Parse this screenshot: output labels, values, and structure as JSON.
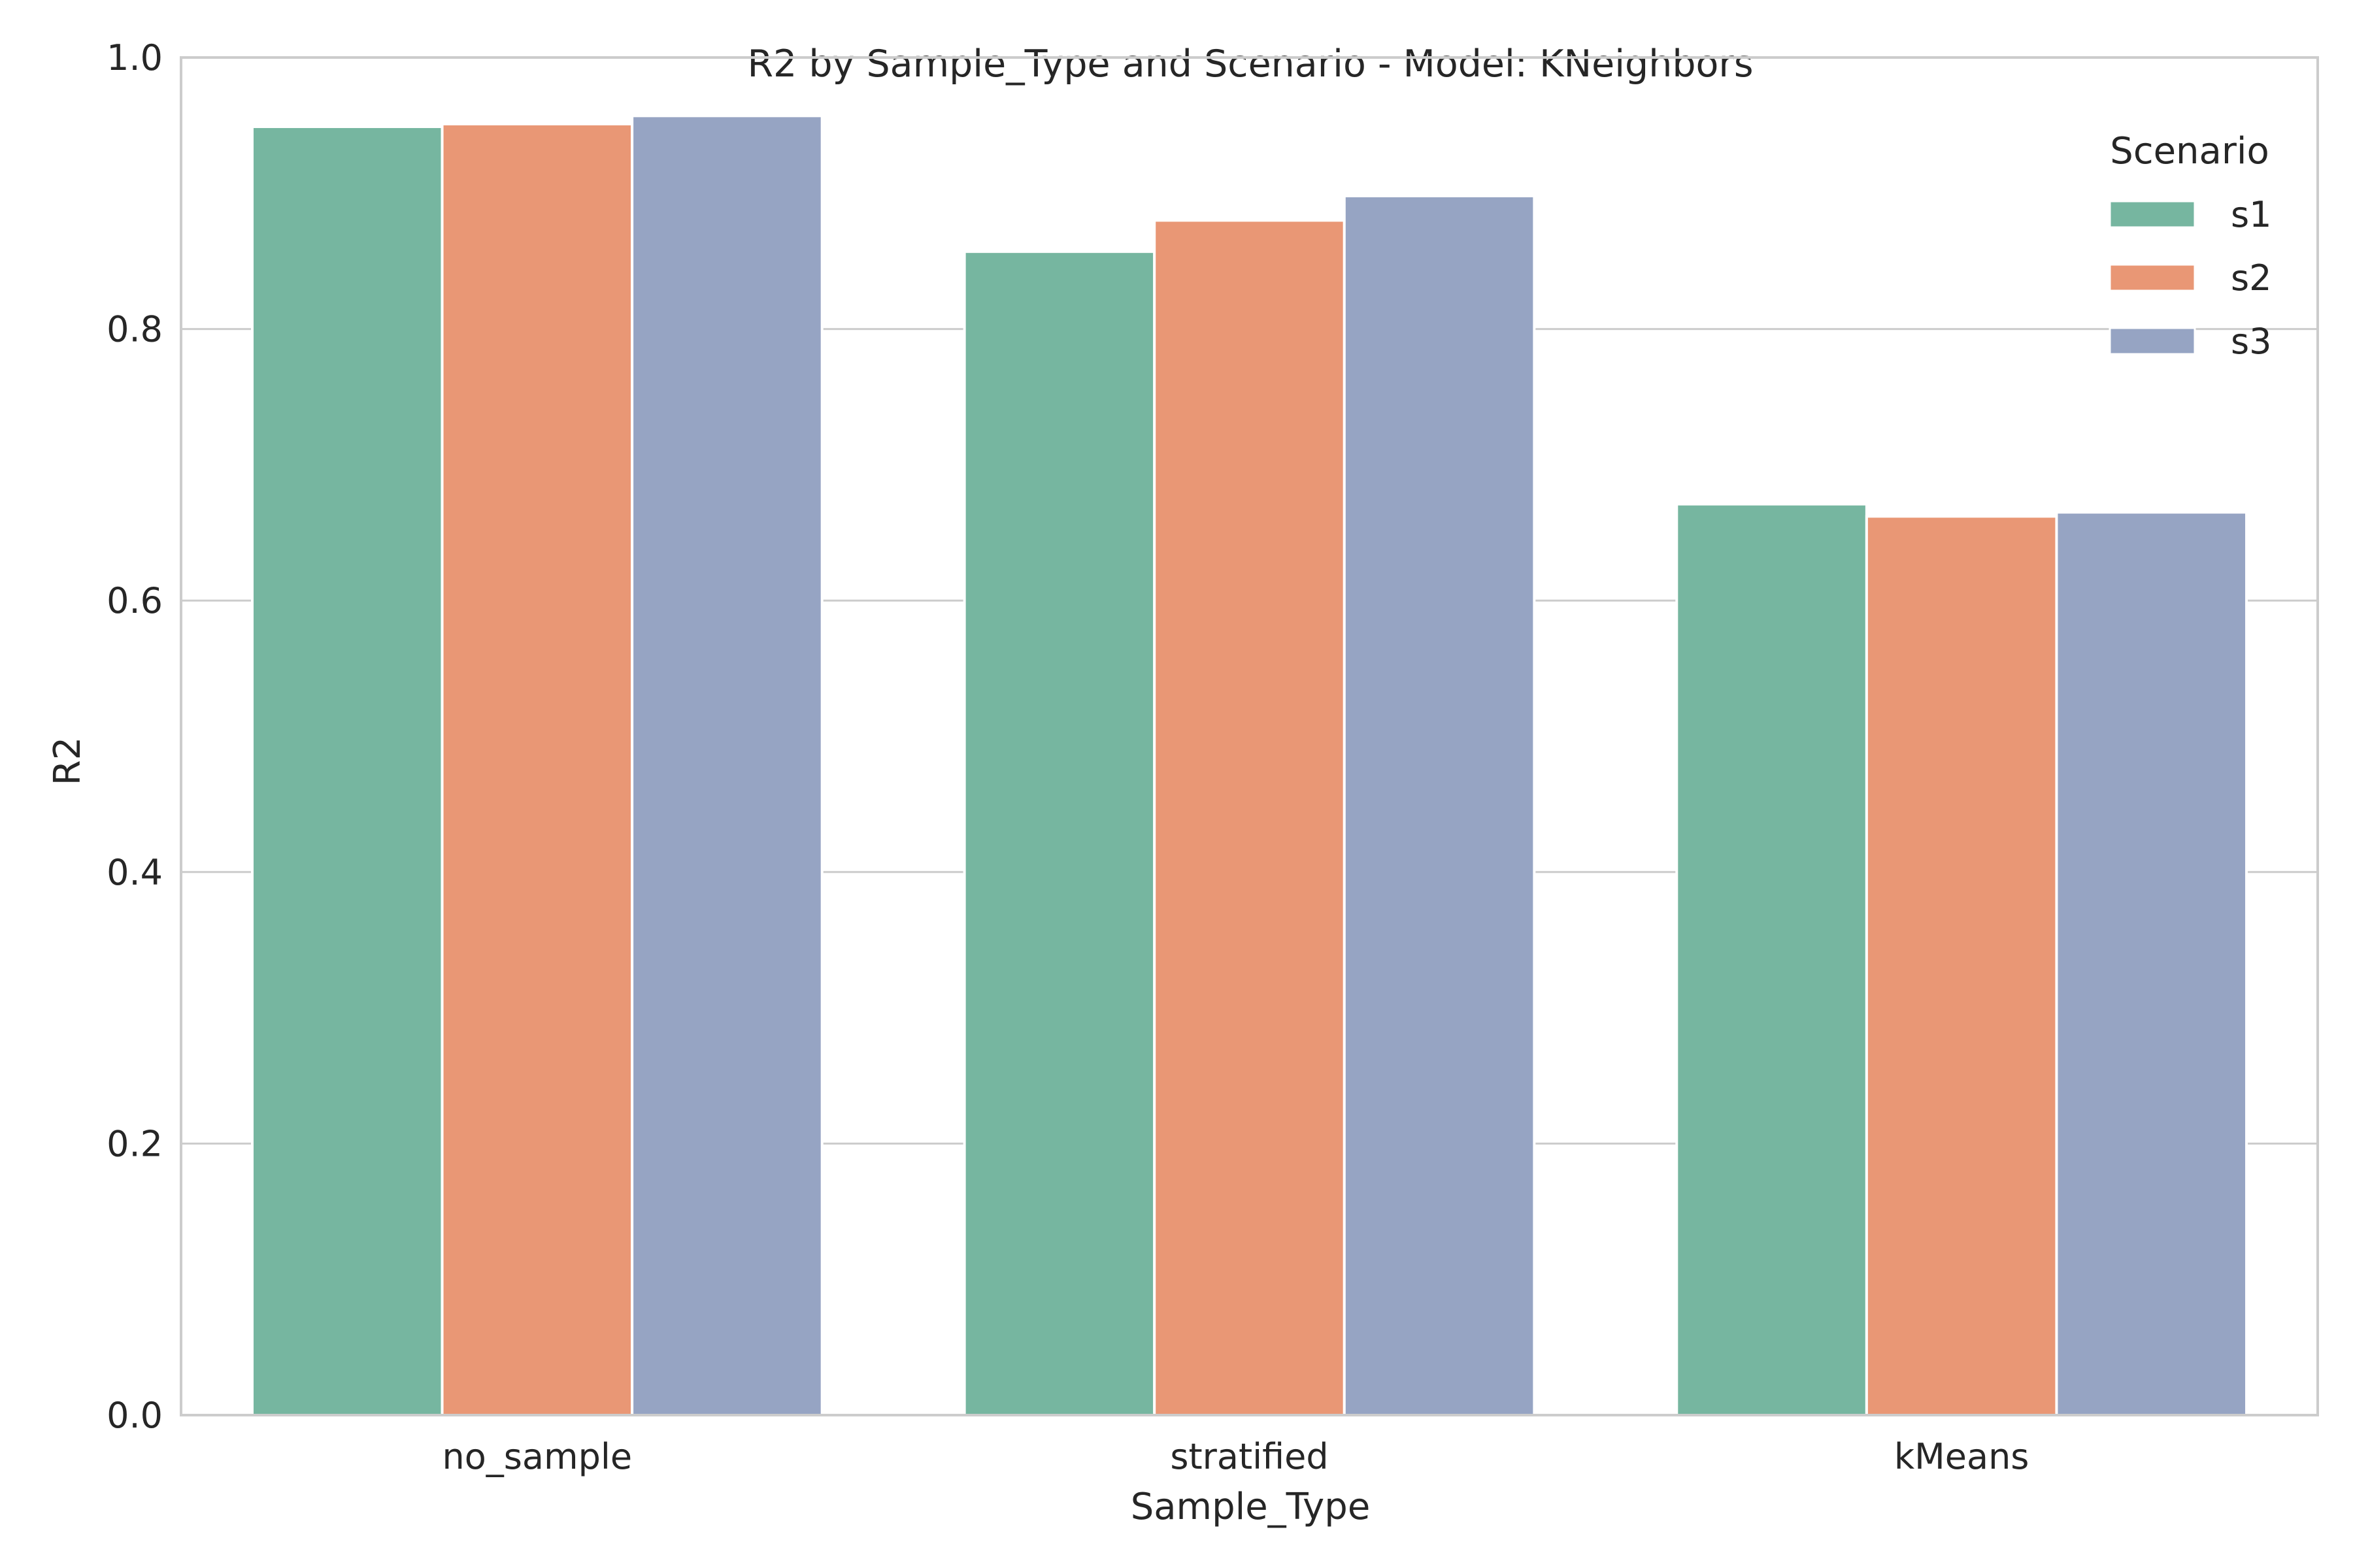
{
  "chart_data": {
    "type": "bar",
    "title": "R2 by Sample_Type and Scenario - Model: KNeighbors",
    "xlabel": "Sample_Type",
    "ylabel": "R2",
    "categories": [
      "no_sample",
      "stratified",
      "kMeans"
    ],
    "series": [
      {
        "name": "s1",
        "color": "#76b6a0",
        "values": [
          0.949,
          0.857,
          0.671
        ]
      },
      {
        "name": "s2",
        "color": "#e99775",
        "values": [
          0.951,
          0.88,
          0.662
        ]
      },
      {
        "name": "s3",
        "color": "#96a4c3",
        "values": [
          0.957,
          0.898,
          0.665
        ]
      }
    ],
    "ylim": [
      0,
      1.0
    ],
    "yticks": [
      "0.0",
      "0.2",
      "0.4",
      "0.6",
      "0.8",
      "1.0"
    ],
    "grid": "horizontal",
    "legend": {
      "title": "Scenario",
      "placement": "top-right"
    }
  }
}
